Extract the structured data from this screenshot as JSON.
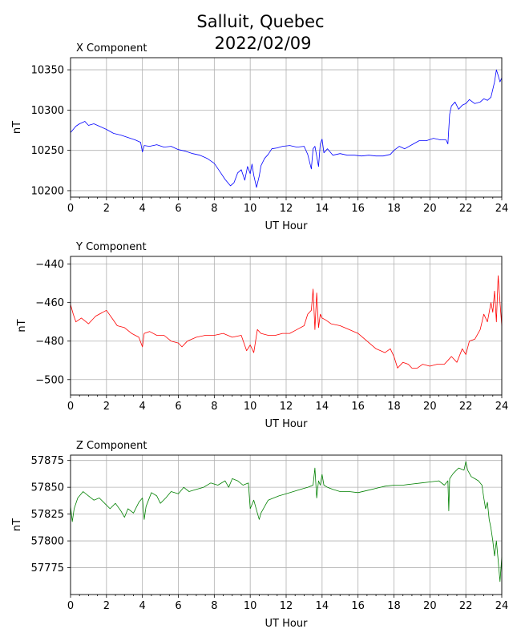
{
  "chart_data": {
    "title_line1": "Salluit, Quebec",
    "title_line2": "2022/02/09",
    "panels": [
      {
        "type": "line",
        "title": "X Component",
        "xlabel": "UT Hour",
        "ylabel": "nT",
        "color": "#0000ff",
        "xlim": [
          0,
          24
        ],
        "ylim": [
          10192,
          10365
        ],
        "xticks": [
          0,
          2,
          4,
          6,
          8,
          10,
          12,
          14,
          16,
          18,
          20,
          22,
          24
        ],
        "yticks": [
          10200,
          10250,
          10300,
          10350
        ],
        "grid": true,
        "series": [
          {
            "x": [
              0,
              0.3,
              0.5,
              0.8,
              1.0,
              1.3,
              1.6,
              2.0,
              2.4,
              2.8,
              3.2,
              3.6,
              3.9,
              4.0,
              4.1,
              4.4,
              4.8,
              5.2,
              5.6,
              6.0,
              6.4,
              6.8,
              7.2,
              7.6,
              8.0,
              8.3,
              8.6,
              8.9,
              9.1,
              9.3,
              9.5,
              9.7,
              9.85,
              10.0,
              10.1,
              10.2,
              10.35,
              10.5,
              10.6,
              10.8,
              11.0,
              11.2,
              11.5,
              11.8,
              12.2,
              12.6,
              13.0,
              13.2,
              13.4,
              13.5,
              13.6,
              13.7,
              13.8,
              13.9,
              14.0,
              14.1,
              14.3,
              14.6,
              15.0,
              15.4,
              15.8,
              16.2,
              16.6,
              17.0,
              17.4,
              17.8,
              18.0,
              18.3,
              18.6,
              19.0,
              19.4,
              19.8,
              20.2,
              20.6,
              20.9,
              21.0,
              21.1,
              21.2,
              21.4,
              21.6,
              21.8,
              22.0,
              22.2,
              22.5,
              22.8,
              23.0,
              23.2,
              23.4,
              23.6,
              23.7,
              23.8,
              23.9,
              24.0
            ],
            "y": [
              10272,
              10280,
              10283,
              10286,
              10281,
              10283,
              10280,
              10276,
              10271,
              10269,
              10266,
              10263,
              10260,
              10248,
              10256,
              10255,
              10257,
              10254,
              10255,
              10251,
              10249,
              10246,
              10244,
              10240,
              10234,
              10224,
              10214,
              10206,
              10210,
              10222,
              10226,
              10213,
              10230,
              10221,
              10233,
              10219,
              10204,
              10218,
              10231,
              10240,
              10245,
              10252,
              10253,
              10255,
              10256,
              10254,
              10255,
              10245,
              10227,
              10252,
              10255,
              10243,
              10230,
              10258,
              10264,
              10247,
              10252,
              10244,
              10246,
              10244,
              10244,
              10243,
              10244,
              10243,
              10243,
              10245,
              10250,
              10255,
              10252,
              10257,
              10262,
              10262,
              10265,
              10263,
              10263,
              10258,
              10295,
              10305,
              10310,
              10301,
              10306,
              10308,
              10313,
              10308,
              10310,
              10314,
              10312,
              10316,
              10335,
              10350,
              10343,
              10335,
              10340
            ]
          }
        ]
      },
      {
        "type": "line",
        "title": "Y Component",
        "xlabel": "UT Hour",
        "ylabel": "nT",
        "color": "#ff0000",
        "xlim": [
          0,
          24
        ],
        "ylim": [
          -508,
          -436
        ],
        "xticks": [
          0,
          2,
          4,
          6,
          8,
          10,
          12,
          14,
          16,
          18,
          20,
          22,
          24
        ],
        "yticks": [
          -440,
          -460,
          -480,
          -500
        ],
        "grid": true,
        "series": [
          {
            "x": [
              0,
              0.15,
              0.3,
              0.6,
              1.0,
              1.4,
              1.8,
              2.0,
              2.3,
              2.6,
              3.0,
              3.4,
              3.8,
              4.0,
              4.1,
              4.4,
              4.8,
              5.2,
              5.6,
              6.0,
              6.2,
              6.5,
              7.0,
              7.5,
              8.0,
              8.5,
              9.0,
              9.5,
              9.8,
              10.0,
              10.2,
              10.4,
              10.6,
              11.0,
              11.4,
              11.8,
              12.2,
              12.6,
              13.0,
              13.2,
              13.4,
              13.5,
              13.6,
              13.7,
              13.8,
              13.9,
              14.0,
              14.2,
              14.5,
              15.0,
              15.5,
              16.0,
              16.5,
              17.0,
              17.5,
              17.8,
              18.0,
              18.2,
              18.5,
              18.8,
              19.0,
              19.3,
              19.6,
              20.0,
              20.4,
              20.8,
              21.0,
              21.2,
              21.5,
              21.8,
              22.0,
              22.2,
              22.5,
              22.8,
              23.0,
              23.2,
              23.4,
              23.5,
              23.6,
              23.7,
              23.8,
              23.9,
              24.0
            ],
            "y": [
              -461,
              -466,
              -470,
              -468,
              -471,
              -467,
              -465,
              -464,
              -468,
              -472,
              -473,
              -476,
              -478,
              -483,
              -476,
              -475,
              -477,
              -477,
              -480,
              -481,
              -483,
              -480,
              -478,
              -477,
              -477,
              -476,
              -478,
              -477,
              -485,
              -482,
              -486,
              -474,
              -476,
              -477,
              -477,
              -476,
              -476,
              -474,
              -472,
              -466,
              -464,
              -453,
              -474,
              -455,
              -473,
              -466,
              -468,
              -469,
              -471,
              -472,
              -474,
              -476,
              -480,
              -484,
              -486,
              -484,
              -488,
              -494,
              -491,
              -492,
              -494,
              -494,
              -492,
              -493,
              -492,
              -492,
              -490,
              -488,
              -491,
              -484,
              -487,
              -480,
              -479,
              -474,
              -466,
              -470,
              -460,
              -465,
              -454,
              -470,
              -446,
              -460,
              -472
            ]
          }
        ]
      },
      {
        "type": "line",
        "title": "Z Component",
        "xlabel": "UT Hour",
        "ylabel": "nT",
        "color": "#008000",
        "xlim": [
          0,
          24
        ],
        "ylim": [
          57750,
          57880
        ],
        "xticks": [
          0,
          2,
          4,
          6,
          8,
          10,
          12,
          14,
          16,
          18,
          20,
          22,
          24
        ],
        "yticks": [
          57775,
          57800,
          57825,
          57850,
          57875
        ],
        "grid": true,
        "series": [
          {
            "x": [
              0,
              0.1,
              0.2,
              0.4,
              0.7,
              1.0,
              1.3,
              1.6,
              1.9,
              2.2,
              2.5,
              2.8,
              3.0,
              3.2,
              3.5,
              3.8,
              4.0,
              4.1,
              4.2,
              4.5,
              4.8,
              5.0,
              5.3,
              5.6,
              6.0,
              6.3,
              6.6,
              7.0,
              7.4,
              7.8,
              8.2,
              8.6,
              8.8,
              9.0,
              9.3,
              9.6,
              9.9,
              10.0,
              10.2,
              10.4,
              10.5,
              10.6,
              10.8,
              11.0,
              11.3,
              11.6,
              12.0,
              12.4,
              12.8,
              13.2,
              13.5,
              13.6,
              13.7,
              13.8,
              13.9,
              14.0,
              14.1,
              14.3,
              14.6,
              15.0,
              15.5,
              16.0,
              16.5,
              17.0,
              17.5,
              18.0,
              18.5,
              19.0,
              19.5,
              20.0,
              20.5,
              20.8,
              21.0,
              21.05,
              21.1,
              21.3,
              21.6,
              21.9,
              22.0,
              22.1,
              22.3,
              22.5,
              22.7,
              22.9,
              23.0,
              23.1,
              23.2,
              23.3,
              23.4,
              23.5,
              23.6,
              23.7,
              23.8,
              23.9,
              24.0
            ],
            "y": [
              57832,
              57818,
              57830,
              57840,
              57846,
              57842,
              57838,
              57840,
              57835,
              57830,
              57835,
              57828,
              57822,
              57830,
              57826,
              57836,
              57840,
              57820,
              57832,
              57845,
              57842,
              57835,
              57840,
              57846,
              57844,
              57850,
              57846,
              57848,
              57850,
              57854,
              57852,
              57856,
              57850,
              57858,
              57856,
              57852,
              57854,
              57830,
              57838,
              57826,
              57820,
              57826,
              57832,
              57838,
              57840,
              57842,
              57844,
              57846,
              57848,
              57850,
              57852,
              57868,
              57840,
              57856,
              57852,
              57862,
              57852,
              57850,
              57848,
              57846,
              57846,
              57845,
              57847,
              57849,
              57851,
              57852,
              57852,
              57853,
              57854,
              57855,
              57856,
              57852,
              57856,
              57828,
              57858,
              57863,
              57868,
              57866,
              57874,
              57866,
              57860,
              57858,
              57856,
              57852,
              57840,
              57830,
              57836,
              57820,
              57812,
              57800,
              57786,
              57800,
              57782,
              57762,
              57785
            ]
          }
        ]
      }
    ]
  }
}
